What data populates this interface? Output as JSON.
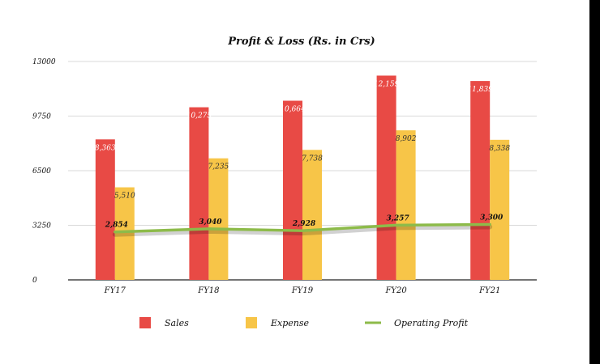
{
  "chart_data": {
    "type": "bar",
    "title": "Profit & Loss (Rs. in Crs)",
    "categories": [
      "FY17",
      "FY18",
      "FY19",
      "FY20",
      "FY21"
    ],
    "series": [
      {
        "name": "Sales",
        "kind": "bar",
        "color": "#e84a45",
        "values": [
          8363,
          10275,
          10664,
          12159,
          11839
        ],
        "labels": [
          "8,363",
          "10,275",
          "10,664",
          "12,159",
          "11,839"
        ]
      },
      {
        "name": "Expense",
        "kind": "bar",
        "color": "#f7c548",
        "values": [
          5510,
          7235,
          7738,
          8902,
          8338
        ],
        "labels": [
          "5,510",
          "7,235",
          "7,738",
          "8,902",
          "8,338"
        ]
      },
      {
        "name": "Operating Profit",
        "kind": "line",
        "color": "#8dbb4a",
        "values": [
          2854,
          3040,
          2928,
          3257,
          3300
        ],
        "labels": [
          "2,854",
          "3,040",
          "2,928",
          "3,257",
          "3,300"
        ]
      }
    ],
    "ylim": [
      0,
      13000
    ],
    "yticks": [
      0,
      3250,
      6500,
      9750,
      13000
    ],
    "ytick_labels": [
      "0",
      "3250",
      "6500",
      "9750",
      "13000"
    ],
    "xlabel": "",
    "ylabel": "",
    "grid": true,
    "legend_position": "bottom"
  }
}
